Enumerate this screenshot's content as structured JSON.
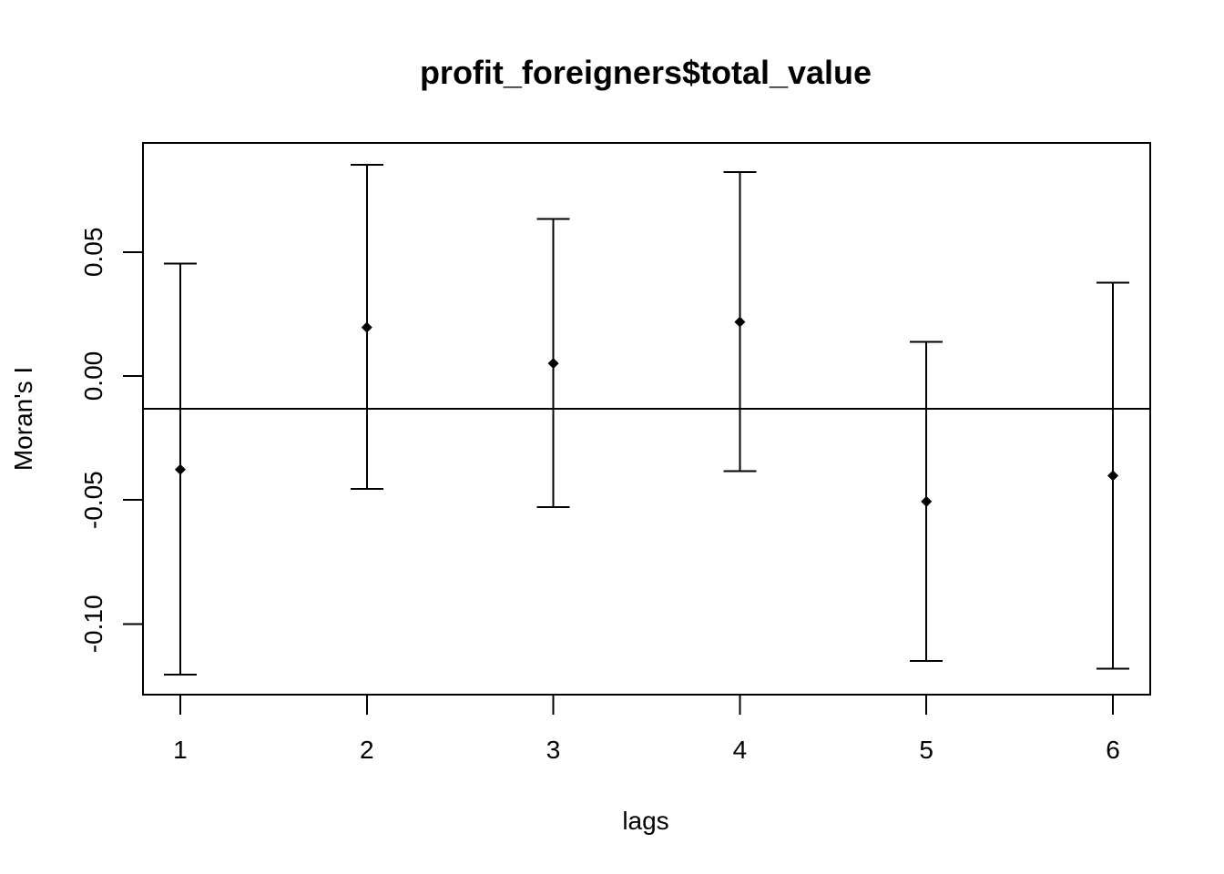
{
  "chart_data": {
    "type": "scatter",
    "title": "profit_foreigners$total_value",
    "xlabel": "lags",
    "ylabel": "Moran's  I",
    "x_ticks": [
      "1",
      "2",
      "3",
      "4",
      "5",
      "6"
    ],
    "y_ticks": [
      -0.1,
      -0.05,
      0.0,
      0.05
    ],
    "y_tick_labels": [
      "-0.10",
      "-0.05",
      "0.00",
      "0.05"
    ],
    "xlim": [
      0.8,
      6.2
    ],
    "ylim": [
      -0.1285,
      0.094
    ],
    "reference_line": -0.0133,
    "grid": false,
    "points": [
      {
        "lag": 1,
        "estimate": -0.0377,
        "lower": -0.1205,
        "upper": 0.0453
      },
      {
        "lag": 2,
        "estimate": 0.0196,
        "lower": -0.0455,
        "upper": 0.0851
      },
      {
        "lag": 3,
        "estimate": 0.0051,
        "lower": -0.0528,
        "upper": 0.0634
      },
      {
        "lag": 4,
        "estimate": 0.0218,
        "lower": -0.0384,
        "upper": 0.0822
      },
      {
        "lag": 5,
        "estimate": -0.0506,
        "lower": -0.115,
        "upper": 0.0138
      },
      {
        "lag": 6,
        "estimate": -0.0402,
        "lower": -0.118,
        "upper": 0.0376
      }
    ],
    "colors": {
      "mark": "#000000",
      "background": "#ffffff"
    }
  }
}
